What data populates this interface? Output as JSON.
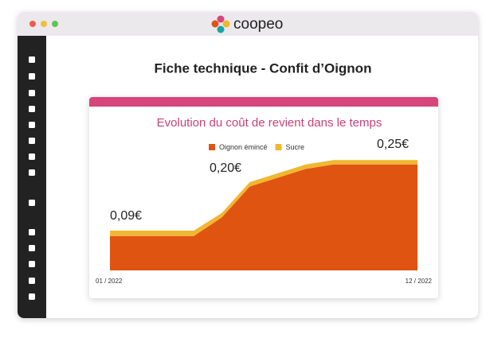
{
  "app": {
    "logo": "coopeo"
  },
  "page": {
    "title": "Fiche technique - Confit d’Oignon"
  },
  "chart_data": {
    "type": "area",
    "stacked": true,
    "title": "Evolution du coût de revient dans le temps",
    "categories": [
      "01 / 2022",
      null,
      null,
      null,
      null,
      null,
      null,
      null,
      null,
      null,
      null,
      "12 / 2022"
    ],
    "series": [
      {
        "name": "Oignon émincé",
        "color": "#e05412",
        "values": [
          0.078,
          0.078,
          0.078,
          0.078,
          0.12,
          0.19,
          0.21,
          0.23,
          0.24,
          0.24,
          0.24,
          0.24
        ]
      },
      {
        "name": "Sucre",
        "color": "#f0b731",
        "values": [
          0.012,
          0.012,
          0.012,
          0.012,
          0.01,
          0.01,
          0.01,
          0.01,
          0.01,
          0.01,
          0.01,
          0.01
        ]
      }
    ],
    "annotations": [
      "0,09€",
      "0,20€",
      "0,25€"
    ]
  }
}
